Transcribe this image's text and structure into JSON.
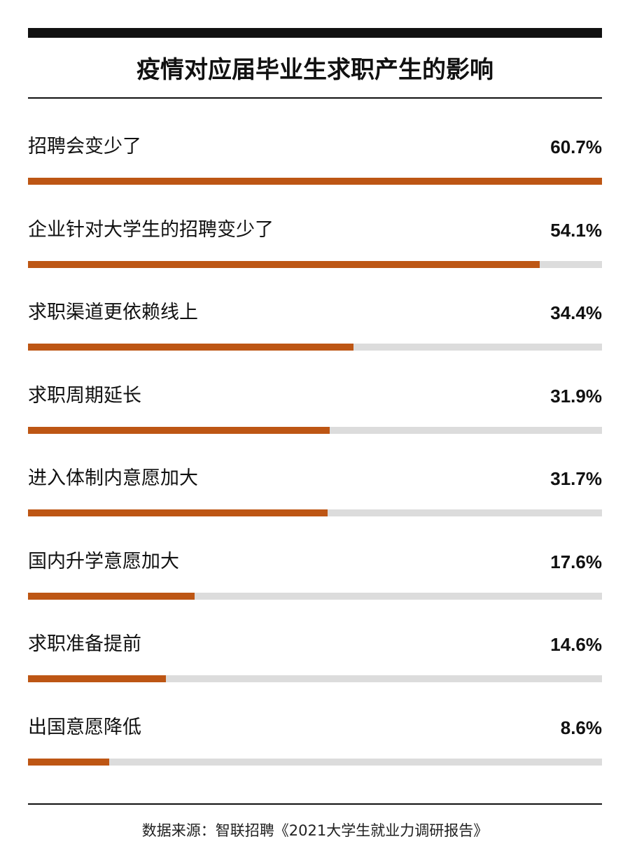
{
  "title": "疫情对应届毕业生求职产生的影响",
  "source": "数据来源：智联招聘《2021大学生就业力调研报告》",
  "colors": {
    "bar": "#bd5614",
    "track": "#dcdcdc",
    "rule": "#111111"
  },
  "chart_data": {
    "type": "bar",
    "orientation": "horizontal",
    "title": "疫情对应届毕业生求职产生的影响",
    "categories": [
      "招聘会变少了",
      "企业针对大学生的招聘变少了",
      "求职渠道更依赖线上",
      "求职周期延长",
      "进入体制内意愿加大",
      "国内升学意愿加大",
      "求职准备提前",
      "出国意愿降低"
    ],
    "values": [
      60.7,
      54.1,
      34.4,
      31.9,
      31.7,
      17.6,
      14.6,
      8.6
    ],
    "value_labels": [
      "60.7%",
      "54.1%",
      "34.4%",
      "31.9%",
      "31.7%",
      "17.6%",
      "14.6%",
      "8.6%"
    ],
    "xlim": [
      0,
      60.7
    ],
    "grid": false,
    "legend": "none"
  }
}
